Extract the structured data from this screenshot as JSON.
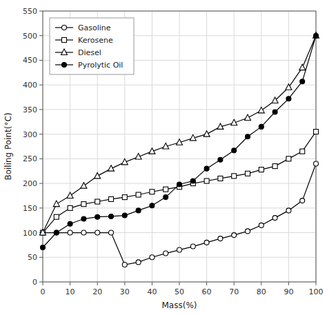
{
  "chart_data": {
    "type": "line",
    "xlabel": "Mass(%)",
    "ylabel": "Boiling Point(°C)",
    "x": [
      0,
      5,
      10,
      15,
      20,
      25,
      30,
      35,
      40,
      45,
      50,
      55,
      60,
      65,
      70,
      75,
      80,
      85,
      90,
      95,
      100
    ],
    "series": [
      {
        "name": "Gasoline",
        "color": "#000000",
        "marker": "open-circle",
        "values": [
          100,
          100,
          100,
          100,
          100,
          100,
          35,
          40,
          50,
          58,
          65,
          72,
          80,
          88,
          95,
          103,
          115,
          130,
          145,
          165,
          240
        ]
      },
      {
        "name": "Kerosene",
        "color": "#000000",
        "marker": "open-square",
        "values": [
          100,
          132,
          150,
          158,
          163,
          168,
          172,
          177,
          183,
          188,
          193,
          200,
          205,
          210,
          215,
          220,
          228,
          235,
          250,
          265,
          305
        ]
      },
      {
        "name": "Diesel",
        "color": "#000000",
        "marker": "open-triangle",
        "values": [
          100,
          158,
          175,
          195,
          215,
          230,
          243,
          254,
          265,
          275,
          283,
          292,
          300,
          315,
          323,
          333,
          348,
          368,
          395,
          435,
          500
        ]
      },
      {
        "name": "Pyrolytic Oil",
        "color": "#000000",
        "marker": "filled-circle",
        "values": [
          70,
          100,
          118,
          128,
          132,
          133,
          135,
          145,
          155,
          172,
          198,
          205,
          230,
          248,
          267,
          295,
          315,
          345,
          372,
          407,
          500
        ]
      }
    ],
    "xlim": [
      0,
      100
    ],
    "ylim": [
      0,
      550
    ],
    "xticks": [
      0,
      10,
      20,
      30,
      40,
      50,
      60,
      70,
      80,
      90,
      100
    ],
    "yticks": [
      0,
      50,
      100,
      150,
      200,
      250,
      300,
      350,
      400,
      450,
      500,
      550
    ],
    "grid": true,
    "legend": "upper-left"
  }
}
